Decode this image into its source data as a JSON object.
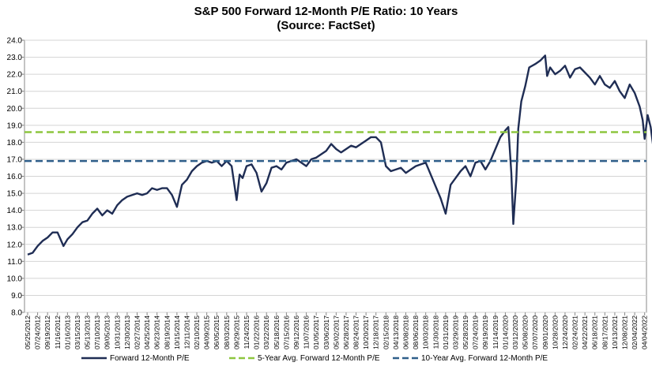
{
  "chart_data": {
    "type": "line",
    "title": "S&P 500 Forward 12-Month P/E Ratio: 10 Years",
    "subtitle": "(Source: FactSet)",
    "xlabel": "",
    "ylabel": "",
    "ylim": [
      8.0,
      24.0
    ],
    "y_ticks": [
      "24.0",
      "23.0",
      "22.0",
      "21.0",
      "20.0",
      "19.0",
      "18.0",
      "17.0",
      "16.0",
      "15.0",
      "14.0",
      "13.0",
      "12.0",
      "11.0",
      "10.0",
      "9.0",
      "8.0"
    ],
    "x_ticks": [
      "05/25/2012",
      "07/24/2012",
      "09/19/2012",
      "11/16/2012",
      "01/16/2013",
      "03/15/2013",
      "05/13/2013",
      "07/10/2013",
      "09/05/2013",
      "10/31/2013",
      "12/30/2013",
      "02/27/2014",
      "04/25/2014",
      "06/23/2014",
      "08/19/2014",
      "10/15/2014",
      "12/11/2014",
      "02/10/2015",
      "04/09/2015",
      "06/05/2015",
      "08/03/2015",
      "09/29/2015",
      "11/24/2015",
      "01/22/2016",
      "03/22/2016",
      "05/18/2016",
      "07/15/2016",
      "09/12/2016",
      "11/07/2016",
      "01/05/2017",
      "03/06/2017",
      "05/02/2017",
      "06/28/2017",
      "08/24/2017",
      "10/20/2017",
      "12/18/2017",
      "02/15/2018",
      "04/13/2018",
      "06/08/2018",
      "08/06/2018",
      "10/03/2018",
      "11/30/2018",
      "01/31/2019",
      "03/29/2019",
      "05/28/2019",
      "07/24/2019",
      "09/19/2019",
      "11/14/2019",
      "01/14/2020",
      "03/12/2020",
      "05/08/2020",
      "07/07/2020",
      "09/01/2020",
      "10/28/2020",
      "12/24/2020",
      "02/24/2021",
      "04/22/2021",
      "06/18/2021",
      "08/17/2021",
      "10/13/2021",
      "12/08/2021",
      "02/04/2022",
      "04/04/2022"
    ],
    "series": [
      {
        "name": "Forward 12-Month P/E",
        "color": "#1f2d54",
        "style": "solid",
        "points": [
          [
            0,
            11.4
          ],
          [
            0.5,
            11.5
          ],
          [
            1,
            11.9
          ],
          [
            1.5,
            12.2
          ],
          [
            2,
            12.4
          ],
          [
            2.5,
            12.7
          ],
          [
            3,
            12.7
          ],
          [
            3.6,
            11.9
          ],
          [
            4,
            12.3
          ],
          [
            4.5,
            12.6
          ],
          [
            5,
            13.0
          ],
          [
            5.5,
            13.3
          ],
          [
            6,
            13.4
          ],
          [
            6.5,
            13.8
          ],
          [
            7,
            14.1
          ],
          [
            7.5,
            13.7
          ],
          [
            8,
            14.0
          ],
          [
            8.5,
            13.8
          ],
          [
            9,
            14.3
          ],
          [
            9.5,
            14.6
          ],
          [
            10,
            14.8
          ],
          [
            10.5,
            14.9
          ],
          [
            11,
            15.0
          ],
          [
            11.5,
            14.9
          ],
          [
            12,
            15.0
          ],
          [
            12.5,
            15.3
          ],
          [
            13,
            15.2
          ],
          [
            13.5,
            15.3
          ],
          [
            14,
            15.3
          ],
          [
            14.5,
            14.9
          ],
          [
            15,
            14.2
          ],
          [
            15.5,
            15.5
          ],
          [
            16,
            15.8
          ],
          [
            16.5,
            16.3
          ],
          [
            17,
            16.6
          ],
          [
            17.5,
            16.8
          ],
          [
            18,
            16.9
          ],
          [
            18.5,
            16.8
          ],
          [
            19,
            16.9
          ],
          [
            19.5,
            16.6
          ],
          [
            20,
            16.9
          ],
          [
            20.5,
            16.6
          ],
          [
            21,
            14.6
          ],
          [
            21.3,
            16.1
          ],
          [
            21.6,
            15.9
          ],
          [
            22,
            16.6
          ],
          [
            22.5,
            16.7
          ],
          [
            23,
            16.2
          ],
          [
            23.5,
            15.1
          ],
          [
            24,
            15.6
          ],
          [
            24.5,
            16.5
          ],
          [
            25,
            16.6
          ],
          [
            25.5,
            16.4
          ],
          [
            26,
            16.8
          ],
          [
            26.5,
            16.9
          ],
          [
            27,
            17.0
          ],
          [
            27.5,
            16.8
          ],
          [
            28,
            16.6
          ],
          [
            28.5,
            17.0
          ],
          [
            29,
            17.1
          ],
          [
            29.5,
            17.3
          ],
          [
            30,
            17.5
          ],
          [
            30.5,
            17.9
          ],
          [
            31,
            17.6
          ],
          [
            31.5,
            17.4
          ],
          [
            32,
            17.6
          ],
          [
            32.5,
            17.8
          ],
          [
            33,
            17.7
          ],
          [
            33.5,
            17.9
          ],
          [
            34,
            18.1
          ],
          [
            34.5,
            18.3
          ],
          [
            35,
            18.3
          ],
          [
            35.5,
            18.0
          ],
          [
            36,
            16.6
          ],
          [
            36.5,
            16.3
          ],
          [
            37,
            16.4
          ],
          [
            37.5,
            16.5
          ],
          [
            38,
            16.2
          ],
          [
            38.5,
            16.4
          ],
          [
            39,
            16.6
          ],
          [
            39.5,
            16.7
          ],
          [
            40,
            16.8
          ],
          [
            40.5,
            16.1
          ],
          [
            41,
            15.4
          ],
          [
            41.5,
            14.7
          ],
          [
            42,
            13.8
          ],
          [
            42.5,
            15.5
          ],
          [
            43,
            15.9
          ],
          [
            43.5,
            16.3
          ],
          [
            44,
            16.6
          ],
          [
            44.5,
            16.0
          ],
          [
            45,
            16.8
          ],
          [
            45.5,
            16.9
          ],
          [
            46,
            16.4
          ],
          [
            46.5,
            16.9
          ],
          [
            47,
            17.6
          ],
          [
            47.5,
            18.3
          ],
          [
            48,
            18.7
          ],
          [
            48.3,
            18.9
          ],
          [
            48.6,
            16.2
          ],
          [
            48.8,
            13.2
          ],
          [
            49.1,
            15.8
          ],
          [
            49.3,
            18.8
          ],
          [
            49.6,
            20.4
          ],
          [
            50,
            21.3
          ],
          [
            50.4,
            22.4
          ],
          [
            51,
            22.6
          ],
          [
            51.5,
            22.8
          ],
          [
            52,
            23.1
          ],
          [
            52.2,
            21.9
          ],
          [
            52.5,
            22.4
          ],
          [
            53,
            22.0
          ],
          [
            53.5,
            22.2
          ],
          [
            54,
            22.5
          ],
          [
            54.5,
            21.8
          ],
          [
            55,
            22.3
          ],
          [
            55.5,
            22.4
          ],
          [
            56,
            22.1
          ],
          [
            56.5,
            21.8
          ],
          [
            57,
            21.4
          ],
          [
            57.5,
            21.9
          ],
          [
            58,
            21.4
          ],
          [
            58.5,
            21.2
          ],
          [
            59,
            21.6
          ],
          [
            59.5,
            21.0
          ],
          [
            60,
            20.6
          ],
          [
            60.5,
            21.4
          ],
          [
            61,
            20.9
          ],
          [
            61.5,
            20.1
          ],
          [
            61.8,
            19.3
          ],
          [
            62,
            18.2
          ],
          [
            62.3,
            19.6
          ],
          [
            62.6,
            18.9
          ],
          [
            62.9,
            17.6
          ],
          [
            63.1,
            16.9
          ],
          [
            63.4,
            16.8
          ],
          [
            63.5,
            17.1
          ]
        ]
      },
      {
        "name": "5-Year Avg. Forward 12-Month P/E",
        "color": "#8dc63f",
        "style": "dashed",
        "value": 18.6
      },
      {
        "name": "10-Year Avg. Forward 12-Month P/E",
        "color": "#2f5f8a",
        "style": "dashed",
        "value": 16.9
      }
    ],
    "grid": true,
    "legend_position": "bottom"
  }
}
